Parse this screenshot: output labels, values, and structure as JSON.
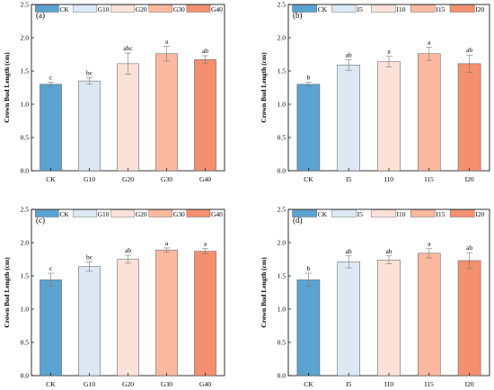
{
  "colors": {
    "CK": "#5ba3d0",
    "G10": "#dce9f5",
    "G20": "#fbe2d8",
    "G30": "#fbb9a0",
    "G40": "#f4906f",
    "I5": "#dce9f5",
    "I10": "#fbe2d8",
    "I15": "#fbb9a0",
    "I20": "#f4906f"
  },
  "chart_data": [
    {
      "type": "bar",
      "panel_label": "(a)",
      "ylabel": "Crown Bud Length (cm)",
      "ylim": [
        0,
        2.5
      ],
      "yticks": [
        "0.0",
        "0.5",
        "1.0",
        "1.5",
        "2.0",
        "2.5"
      ],
      "categories": [
        "CK",
        "G10",
        "G20",
        "G30",
        "G40"
      ],
      "values": [
        1.3,
        1.35,
        1.61,
        1.76,
        1.67
      ],
      "errors": [
        0.03,
        0.05,
        0.16,
        0.11,
        0.06
      ],
      "letters": [
        "c",
        "bc",
        "abc",
        "a",
        "ab"
      ],
      "legend": [
        "CK",
        "G10",
        "G20",
        "G30",
        "G40"
      ],
      "legend_position": "top-right"
    },
    {
      "type": "bar",
      "panel_label": "(b)",
      "ylabel": "Crown Bud Length (cm)",
      "ylim": [
        0,
        2.5
      ],
      "yticks": [
        "0.0",
        "0.5",
        "1.0",
        "1.5",
        "2.0",
        "2.5"
      ],
      "categories": [
        "CK",
        "I5",
        "I10",
        "I15",
        "I20"
      ],
      "values": [
        1.3,
        1.59,
        1.64,
        1.76,
        1.61
      ],
      "errors": [
        0.03,
        0.08,
        0.08,
        0.1,
        0.13
      ],
      "letters": [
        "b",
        "ab",
        "a",
        "a",
        "ab"
      ],
      "legend": [
        "CK",
        "I5",
        "I10",
        "I15",
        "I20"
      ],
      "legend_position": "top-right"
    },
    {
      "type": "bar",
      "panel_label": "(c)",
      "ylabel": "Crown Bud Length (cm)",
      "ylim": [
        0,
        2.5
      ],
      "yticks": [
        "0.0",
        "0.5",
        "1.0",
        "1.5",
        "2.0",
        "2.5"
      ],
      "categories": [
        "CK",
        "G10",
        "G20",
        "G30",
        "G40"
      ],
      "values": [
        1.44,
        1.64,
        1.75,
        1.89,
        1.87
      ],
      "errors": [
        0.1,
        0.07,
        0.06,
        0.03,
        0.04
      ],
      "letters": [
        "c",
        "bc",
        "ab",
        "a",
        "a"
      ],
      "legend": [
        "CK",
        "G10",
        "G20",
        "G30",
        "G40"
      ],
      "legend_position": "top-right"
    },
    {
      "type": "bar",
      "panel_label": "(d)",
      "ylabel": "Crown Bud Length (cm)",
      "ylim": [
        0,
        2.5
      ],
      "yticks": [
        "0.0",
        "0.5",
        "1.0",
        "1.5",
        "2.0",
        "2.5"
      ],
      "categories": [
        "CK",
        "I5",
        "I10",
        "I15",
        "I20"
      ],
      "values": [
        1.44,
        1.71,
        1.74,
        1.84,
        1.73
      ],
      "errors": [
        0.1,
        0.09,
        0.06,
        0.07,
        0.12
      ],
      "letters": [
        "b",
        "ab",
        "ab",
        "a",
        "ab"
      ],
      "legend": [
        "CK",
        "I5",
        "I10",
        "I15",
        "I20"
      ],
      "legend_position": "top-right"
    }
  ]
}
